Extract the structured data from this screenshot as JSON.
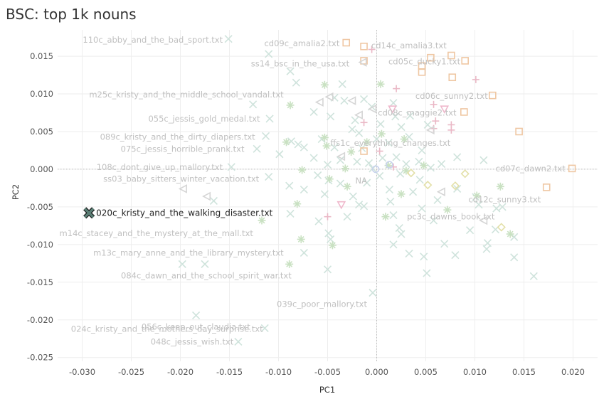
{
  "chart_data": {
    "type": "scatter",
    "title": "BSC: top 1k nouns",
    "xlabel": "PC1",
    "ylabel": "PC2",
    "xlim": [
      -0.0325,
      0.0225
    ],
    "ylim": [
      -0.0255,
      0.0185
    ],
    "xticks": [
      -0.03,
      -0.025,
      -0.02,
      -0.015,
      -0.01,
      -0.005,
      0.0,
      0.005,
      0.01,
      0.015,
      0.02
    ],
    "xtick_labels": [
      "-0.030",
      "-0.025",
      "-0.020",
      "-0.015",
      "-0.010",
      "-0.005",
      "0.000",
      "0.005",
      "0.010",
      "0.015",
      "0.020"
    ],
    "yticks": [
      0.015,
      0.01,
      0.005,
      0.0,
      -0.005,
      -0.01,
      -0.015,
      -0.02,
      -0.025
    ],
    "ytick_labels": [
      "0.015",
      "0.010",
      "0.005",
      "0.000",
      "-0.005",
      "-0.010",
      "-0.015",
      "-0.020",
      "-0.025"
    ],
    "grid": true,
    "colors": {
      "x": "#cfe3dc",
      "asterisk": "#c9e1c2",
      "square": "#efc7a3",
      "plus": "#eab8c6",
      "triangle-left": "#d5d5d5",
      "triangle-down": "#efb8cc",
      "diamond": "#e3e0a8",
      "circle": "#c7d2ec",
      "highlight_fill": "#5a7d74",
      "highlight_stroke": "#111111"
    },
    "highlight": {
      "label": "020c_kristy_and_the_walking_disaster.txt",
      "x": -0.0293,
      "y": -0.0058,
      "marker": "x"
    },
    "labels": [
      {
        "text": "110c_abby_and_the_bad_sport.txt",
        "x": -0.0151,
        "y": 0.0172
      },
      {
        "text": "cd09c_amalia2.txt",
        "x": -0.0032,
        "y": 0.0167
      },
      {
        "text": "cd14c_amalia3.txt",
        "x": 0.0077,
        "y": 0.0164
      },
      {
        "text": "ss14_bsc_in_the_usa.txt",
        "x": -0.0022,
        "y": 0.014
      },
      {
        "text": "cd05c_ducky1.txt",
        "x": 0.0091,
        "y": 0.0143
      },
      {
        "text": "m25c_kristy_and_the_middle_school_vandal.txt",
        "x": -0.0089,
        "y": 0.0099
      },
      {
        "text": "cd06c_sunny2.txt",
        "x": 0.0119,
        "y": 0.0097
      },
      {
        "text": "055c_jessis_gold_medal.txt",
        "x": -0.0113,
        "y": 0.0067
      },
      {
        "text": "cd08c_maggie2.txt",
        "x": 0.0087,
        "y": 0.0075
      },
      {
        "text": "089c_kristy_and_the_dirty_diapers.txt",
        "x": -0.0118,
        "y": 0.0043
      },
      {
        "text": "ffs1c_everything_changes.txt",
        "x": 0.0081,
        "y": 0.0035
      },
      {
        "text": "075c_jessis_horrible_prank.txt",
        "x": -0.0129,
        "y": 0.0027
      },
      {
        "text": "108c_dont_give_up_mallory.txt",
        "x": -0.0151,
        "y": 0.0003
      },
      {
        "text": "cd07c_dawn2.txt",
        "x": 0.0198,
        "y": 0.0001
      },
      {
        "text": "ss03_baby_sitters_winter_vacation.txt",
        "x": -0.0114,
        "y": -0.0013
      },
      {
        "text": "NA",
        "x": -0.0004,
        "y": -0.0015
      },
      {
        "text": "cd12c_sunny3.txt",
        "x": 0.0173,
        "y": -0.004
      },
      {
        "text": "pc3c_dawns_book.txt",
        "x": 0.0126,
        "y": -0.0063
      },
      {
        "text": "m14c_stacey_and_the_mystery_at_the_mall.txt",
        "x": -0.012,
        "y": -0.0085
      },
      {
        "text": "m13c_mary_anne_and_the_library_mystery.txt",
        "x": -0.0089,
        "y": -0.0111
      },
      {
        "text": "084c_dawn_and_the_school_spirit_war.txt",
        "x": -0.0081,
        "y": -0.0141
      },
      {
        "text": "039c_poor_mallory.txt",
        "x": -0.0004,
        "y": -0.0179
      },
      {
        "text": "056c_keep_out_claudia.txt",
        "x": -0.0123,
        "y": -0.0209
      },
      {
        "text": "024c_kristy_and_the_mothers_day_surprise.txt",
        "x": -0.011,
        "y": -0.0212
      },
      {
        "text": "048c_jessis_wish.txt",
        "x": -0.014,
        "y": -0.0229
      }
    ],
    "series": [
      {
        "name": "x",
        "marker": "x",
        "points": [
          [
            -0.0151,
            0.0173
          ],
          [
            -0.011,
            0.0153
          ],
          [
            -0.0088,
            0.013
          ],
          [
            -0.0082,
            0.0115
          ],
          [
            -0.0035,
            0.0113
          ],
          [
            -0.0043,
            0.0095
          ],
          [
            -0.0033,
            0.0091
          ],
          [
            -0.0013,
            0.0093
          ],
          [
            -0.0005,
            0.0083
          ],
          [
            0.0017,
            0.0088
          ],
          [
            -0.0126,
            0.0086
          ],
          [
            -0.0109,
            0.0067
          ],
          [
            -0.0064,
            0.0076
          ],
          [
            -0.0047,
            0.007
          ],
          [
            -0.0022,
            0.0065
          ],
          [
            0.0004,
            0.006
          ],
          [
            0.0019,
            0.007
          ],
          [
            0.0034,
            0.0071
          ],
          [
            -0.0113,
            0.0044
          ],
          [
            -0.0087,
            0.0037
          ],
          [
            -0.0074,
            0.0029
          ],
          [
            -0.0056,
            0.004
          ],
          [
            -0.0043,
            0.0029
          ],
          [
            -0.0025,
            0.0053
          ],
          [
            -0.0018,
            0.0048
          ],
          [
            -0.0015,
            0.0028
          ],
          [
            0.0,
            0.004
          ],
          [
            0.0012,
            0.0035
          ],
          [
            0.0025,
            0.0056
          ],
          [
            0.0033,
            0.0043
          ],
          [
            0.0046,
            0.0025
          ],
          [
            0.0052,
            0.0059
          ],
          [
            -0.0122,
            0.0027
          ],
          [
            -0.0099,
            0.002
          ],
          [
            -0.008,
            0.0033
          ],
          [
            -0.0064,
            0.0015
          ],
          [
            -0.005,
            0.0006
          ],
          [
            -0.0037,
            0.0012
          ],
          [
            -0.002,
            0.001
          ],
          [
            -0.0008,
            0.0008
          ],
          [
            0.0006,
            0.0015
          ],
          [
            0.002,
            0.0016
          ],
          [
            0.003,
            0.0007
          ],
          [
            0.0043,
            0.001
          ],
          [
            0.0055,
            0.0002
          ],
          [
            0.0066,
            0.0007
          ],
          [
            0.0082,
            0.0016
          ],
          [
            0.0109,
            0.0012
          ],
          [
            -0.0148,
            0.0003
          ],
          [
            -0.011,
            -0.001
          ],
          [
            -0.0089,
            -0.0022
          ],
          [
            -0.0074,
            -0.0027
          ],
          [
            -0.006,
            -0.0008
          ],
          [
            -0.0053,
            -0.0033
          ],
          [
            -0.0049,
            -0.0015
          ],
          [
            -0.0037,
            -0.0019
          ],
          [
            -0.0024,
            -0.0036
          ],
          [
            -0.0018,
            -0.0047
          ],
          [
            -0.001,
            -0.0018
          ],
          [
            -0.0004,
            0.0001
          ],
          [
            0.0003,
            -0.0009
          ],
          [
            0.0013,
            -0.0027
          ],
          [
            0.0024,
            -0.0006
          ],
          [
            0.0037,
            -0.003
          ],
          [
            0.0044,
            -0.0014
          ],
          [
            0.0062,
            -0.0041
          ],
          [
            0.0082,
            -0.0026
          ],
          [
            0.0101,
            -0.0037
          ],
          [
            0.0128,
            -0.005
          ],
          [
            0.0121,
            -0.008
          ],
          [
            -0.0166,
            -0.0042
          ],
          [
            -0.0088,
            -0.0059
          ],
          [
            -0.0059,
            -0.0069
          ],
          [
            -0.0049,
            -0.0085
          ],
          [
            -0.003,
            -0.0063
          ],
          [
            -0.0013,
            -0.0049
          ],
          [
            0.0014,
            -0.0043
          ],
          [
            0.0017,
            -0.0061
          ],
          [
            0.0025,
            -0.0086
          ],
          [
            0.0046,
            -0.0052
          ],
          [
            0.0058,
            -0.0068
          ],
          [
            0.0069,
            -0.0099
          ],
          [
            0.0095,
            -0.0081
          ],
          [
            0.0113,
            -0.0098
          ],
          [
            0.014,
            -0.009
          ],
          [
            0.0104,
            -0.0047
          ],
          [
            0.0122,
            -0.0052
          ],
          [
            -0.0074,
            -0.0111
          ],
          [
            -0.0047,
            -0.0093
          ],
          [
            -0.005,
            -0.0133
          ],
          [
            0.0017,
            -0.01
          ],
          [
            0.0033,
            -0.0112
          ],
          [
            0.0048,
            -0.0116
          ],
          [
            0.0051,
            -0.0138
          ],
          [
            0.008,
            -0.0114
          ],
          [
            0.0112,
            -0.0106
          ],
          [
            0.014,
            -0.0117
          ],
          [
            0.016,
            -0.0142
          ],
          [
            -0.0198,
            -0.0126
          ],
          [
            -0.0175,
            -0.0126
          ],
          [
            -0.0004,
            -0.0164
          ],
          [
            -0.0184,
            -0.0194
          ],
          [
            -0.0114,
            -0.0211
          ],
          [
            -0.0141,
            -0.0229
          ],
          [
            0.0023,
            -0.0078
          ]
        ]
      },
      {
        "name": "asterisk",
        "marker": "asterisk",
        "points": [
          [
            -0.0053,
            0.0112
          ],
          [
            0.0004,
            0.0113
          ],
          [
            -0.0088,
            0.0085
          ],
          [
            -0.0092,
            0.0036
          ],
          [
            -0.0053,
            0.0042
          ],
          [
            -0.0026,
            0.0023
          ],
          [
            -0.001,
            0.0036
          ],
          [
            0.0005,
            0.0047
          ],
          [
            0.0028,
            0.004
          ],
          [
            -0.0076,
            -0.0001
          ],
          [
            -0.0051,
            0.0031
          ],
          [
            -0.0032,
            0.0001
          ],
          [
            0.0012,
            0.0005
          ],
          [
            0.003,
            -0.0002
          ],
          [
            0.0048,
            0.0005
          ],
          [
            -0.0048,
            -0.0013
          ],
          [
            -0.003,
            -0.0023
          ],
          [
            -0.0081,
            -0.0046
          ],
          [
            -0.0117,
            -0.0068
          ],
          [
            0.0025,
            -0.0033
          ],
          [
            0.0072,
            -0.0054
          ],
          [
            0.0102,
            -0.0035
          ],
          [
            0.0126,
            -0.0023
          ],
          [
            0.0136,
            -0.0086
          ],
          [
            -0.0077,
            -0.0093
          ],
          [
            -0.0045,
            -0.0101
          ],
          [
            -0.0089,
            -0.0126
          ],
          [
            0.0009,
            -0.0063
          ]
        ]
      },
      {
        "name": "square",
        "marker": "square",
        "points": [
          [
            -0.0031,
            0.0168
          ],
          [
            -0.0013,
            0.0163
          ],
          [
            0.0055,
            0.0148
          ],
          [
            0.0076,
            0.0151
          ],
          [
            -0.0013,
            0.0144
          ],
          [
            0.0046,
            0.0137
          ],
          [
            0.0046,
            0.0129
          ],
          [
            0.009,
            0.0144
          ],
          [
            0.0077,
            0.0122
          ],
          [
            0.0118,
            0.0098
          ],
          [
            0.0089,
            0.0076
          ],
          [
            0.0145,
            0.005
          ],
          [
            -0.0013,
            0.0024
          ],
          [
            0.0199,
            0.0001
          ],
          [
            0.0173,
            -0.0024
          ]
        ]
      },
      {
        "name": "plus",
        "marker": "plus",
        "points": [
          [
            -0.0005,
            0.0159
          ],
          [
            0.0101,
            0.0119
          ],
          [
            0.002,
            0.0107
          ],
          [
            0.0058,
            0.0086
          ],
          [
            -0.0013,
            0.0062
          ],
          [
            0.0058,
            0.0054
          ],
          [
            0.0076,
            0.0052
          ],
          [
            0.0076,
            0.0059
          ],
          [
            0.0003,
            0.0024
          ],
          [
            0.0017,
            0.0003
          ],
          [
            -0.005,
            -0.0063
          ],
          [
            0.006,
            0.0064
          ]
        ]
      },
      {
        "name": "triangle-left",
        "marker": "triangle-left",
        "points": [
          [
            -0.0014,
            0.0142
          ],
          [
            -0.0048,
            0.0096
          ],
          [
            -0.0058,
            0.0089
          ],
          [
            -0.0025,
            0.0091
          ],
          [
            -0.0004,
            0.008
          ],
          [
            -0.0018,
            0.0072
          ],
          [
            0.0055,
            0.0052
          ],
          [
            -0.0036,
            0.0017
          ],
          [
            -0.0197,
            -0.0026
          ],
          [
            -0.0173,
            -0.0036
          ],
          [
            0.0066,
            -0.003
          ],
          [
            0.0109,
            -0.0068
          ]
        ]
      },
      {
        "name": "triangle-down",
        "marker": "triangle-down",
        "points": [
          [
            0.0016,
            0.008
          ],
          [
            0.0069,
            0.008
          ],
          [
            -0.0036,
            -0.0047
          ]
        ]
      },
      {
        "name": "diamond",
        "marker": "diamond",
        "points": [
          [
            0.0035,
            -0.0005
          ],
          [
            0.0052,
            -0.0021
          ],
          [
            0.008,
            -0.0022
          ],
          [
            0.009,
            -0.0006
          ],
          [
            0.0127,
            -0.0077
          ]
        ]
      },
      {
        "name": "circle",
        "marker": "circle",
        "points": [
          [
            -0.0001,
            0.0
          ],
          [
            0.0013,
            0.0006
          ]
        ]
      }
    ]
  }
}
